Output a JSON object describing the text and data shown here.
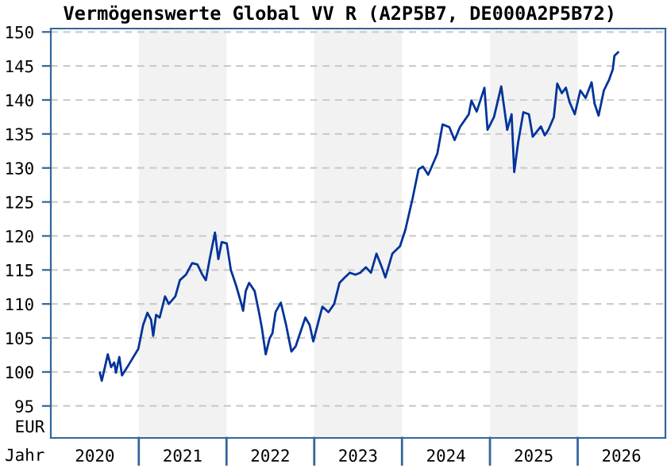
{
  "chart_data": {
    "type": "line",
    "title": "Vermögenswerte Global VV R (A2P5B7, DE000A2P5B72)",
    "xlabel": "Jahr",
    "ylabel": "EUR",
    "series": [
      {
        "color": "#003399",
        "x": [
          "2020-07-23",
          "2020-07-31",
          "2020-08-13",
          "2020-08-25",
          "2020-09-08",
          "2020-09-21",
          "2020-09-28",
          "2020-10-12",
          "2020-10-23",
          "2020-11-14",
          "2020-12-30",
          "2021-01-19",
          "2021-02-06",
          "2021-02-21",
          "2021-03-02",
          "2021-03-14",
          "2021-03-29",
          "2021-04-20",
          "2021-05-06",
          "2021-06-02",
          "2021-06-21",
          "2021-07-16",
          "2021-08-11",
          "2021-09-02",
          "2021-09-21",
          "2021-10-07",
          "2021-10-23",
          "2021-11-14",
          "2021-11-28",
          "2021-12-12",
          "2022-01-02",
          "2022-01-19",
          "2022-02-10",
          "2022-03-04",
          "2022-03-11",
          "2022-03-22",
          "2022-04-05",
          "2022-04-28",
          "2022-05-16",
          "2022-05-28",
          "2022-06-13",
          "2022-06-29",
          "2022-07-11",
          "2022-07-24",
          "2022-08-15",
          "2022-09-06",
          "2022-09-28",
          "2022-10-16",
          "2022-11-03",
          "2022-11-25",
          "2022-12-13",
          "2022-12-28",
          "2023-01-19",
          "2023-02-04",
          "2023-03-01",
          "2023-03-25",
          "2023-04-16",
          "2023-05-08",
          "2023-05-29",
          "2023-06-21",
          "2023-07-12",
          "2023-08-04",
          "2023-08-25",
          "2023-09-17",
          "2023-10-09",
          "2023-10-24",
          "2023-11-22",
          "2023-12-24",
          "2024-01-15",
          "2024-02-14",
          "2024-03-10",
          "2024-03-28",
          "2024-04-19",
          "2024-05-04",
          "2024-05-27",
          "2024-06-18",
          "2024-07-16",
          "2024-08-07",
          "2024-08-29",
          "2024-10-05",
          "2024-10-16",
          "2024-11-07",
          "2024-12-09",
          "2024-12-22",
          "2025-01-18",
          "2025-02-17",
          "2025-03-14",
          "2025-04-01",
          "2025-04-12",
          "2025-04-28",
          "2025-05-20",
          "2025-06-12",
          "2025-06-28",
          "2025-08-01",
          "2025-08-17",
          "2025-09-01",
          "2025-09-24",
          "2025-10-08",
          "2025-10-27",
          "2025-11-13",
          "2025-11-28",
          "2025-12-20",
          "2026-01-12",
          "2026-02-03",
          "2026-02-28",
          "2026-03-12",
          "2026-03-29",
          "2026-04-20",
          "2026-05-12",
          "2026-05-27",
          "2026-06-03",
          "2026-06-18"
        ],
        "values": [
          99.9,
          98.7,
          100.7,
          102.6,
          100.7,
          101.4,
          99.9,
          102.2,
          99.5,
          100.7,
          103.4,
          106.9,
          108.7,
          107.7,
          105.3,
          108.4,
          108.0,
          111.1,
          110.0,
          111.1,
          113.5,
          114.3,
          116.0,
          115.8,
          114.4,
          113.5,
          116.6,
          120.5,
          116.6,
          119.1,
          118.9,
          115.0,
          112.7,
          110.0,
          109.0,
          111.9,
          113.1,
          111.9,
          108.8,
          106.5,
          102.6,
          104.9,
          105.7,
          108.8,
          110.2,
          106.9,
          103.0,
          103.8,
          105.7,
          108.0,
          106.9,
          104.5,
          107.5,
          109.6,
          108.8,
          110.0,
          113.1,
          113.9,
          114.6,
          114.3,
          114.6,
          115.4,
          114.6,
          117.4,
          115.4,
          113.9,
          117.4,
          118.5,
          120.9,
          125.5,
          129.8,
          130.2,
          129.0,
          130.2,
          132.1,
          136.4,
          136.0,
          134.1,
          136.0,
          137.9,
          139.9,
          138.3,
          141.8,
          135.6,
          137.5,
          142.0,
          135.6,
          137.9,
          129.4,
          133.7,
          138.2,
          137.9,
          134.6,
          136.1,
          134.8,
          135.6,
          137.5,
          142.4,
          141.0,
          141.8,
          139.7,
          137.9,
          141.4,
          140.3,
          142.6,
          139.5,
          137.7,
          141.4,
          143.0,
          144.5,
          146.5,
          147.0
        ]
      }
    ],
    "xlim": [
      "2020-01-01",
      "2027-01-01"
    ],
    "xticks": [
      {
        "value": "2020-07-02",
        "label": "2020"
      },
      {
        "value": "2021-07-02",
        "label": "2021"
      },
      {
        "value": "2022-07-02",
        "label": "2022"
      },
      {
        "value": "2023-07-02",
        "label": "2023"
      },
      {
        "value": "2024-07-02",
        "label": "2024"
      },
      {
        "value": "2025-07-02",
        "label": "2025"
      },
      {
        "value": "2026-07-02",
        "label": "2026"
      }
    ],
    "ylim": [
      90.3,
      150.5
    ],
    "yticks": [
      95,
      100,
      105,
      110,
      115,
      120,
      125,
      130,
      135,
      140,
      145,
      150
    ],
    "bands": [
      {
        "axis": "x",
        "from": "2021-01-01",
        "to": "2022-01-01",
        "color": "#f2f2f2"
      },
      {
        "axis": "x",
        "from": "2023-01-01",
        "to": "2024-01-01",
        "color": "#f2f2f2"
      },
      {
        "axis": "x",
        "from": "2025-01-01",
        "to": "2026-01-01",
        "color": "#f2f2f2"
      }
    ],
    "grid": "y",
    "line_style": "solid",
    "marker": "none"
  }
}
